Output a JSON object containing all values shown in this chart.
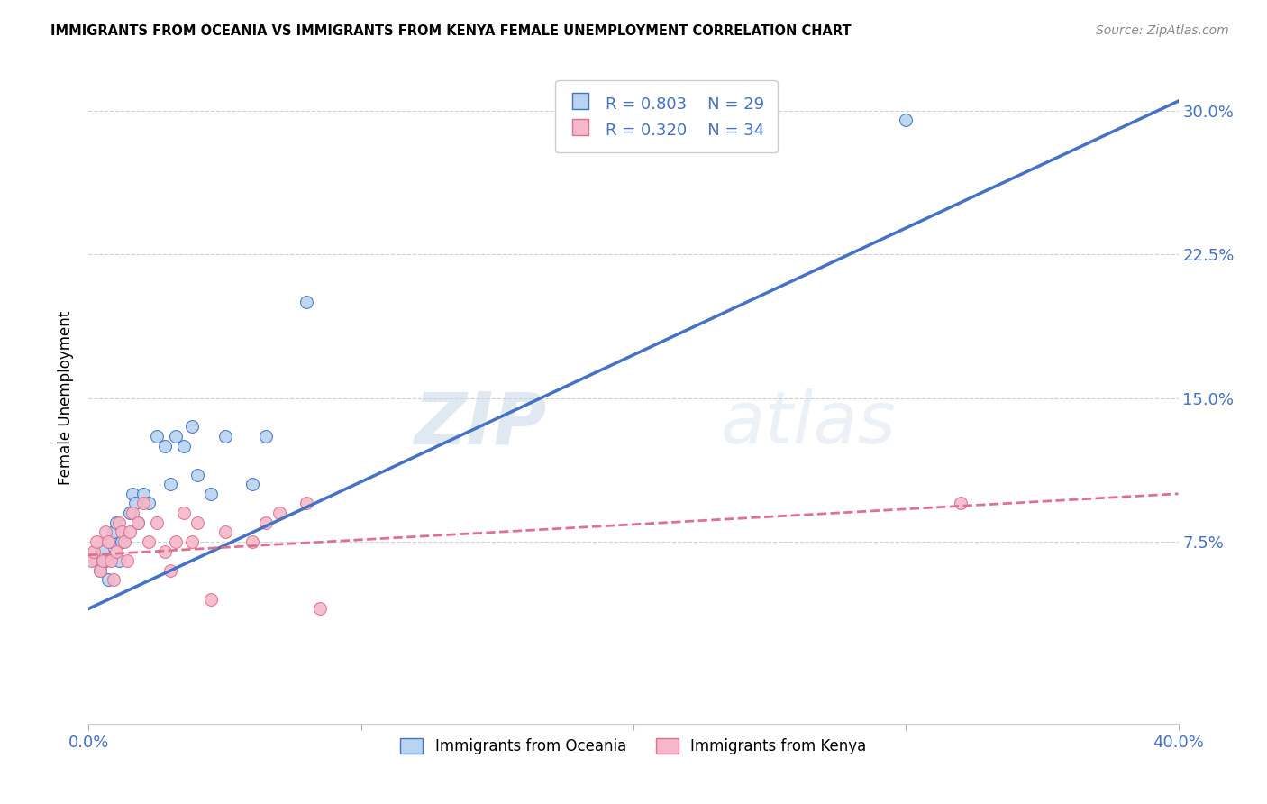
{
  "title": "IMMIGRANTS FROM OCEANIA VS IMMIGRANTS FROM KENYA FEMALE UNEMPLOYMENT CORRELATION CHART",
  "source": "Source: ZipAtlas.com",
  "ylabel": "Female Unemployment",
  "x_min": 0.0,
  "x_max": 0.4,
  "y_min": -0.02,
  "y_max": 0.32,
  "x_ticks": [
    0.0,
    0.1,
    0.2,
    0.3,
    0.4
  ],
  "x_tick_labels": [
    "0.0%",
    "",
    "",
    "",
    "40.0%"
  ],
  "y_ticks": [
    0.075,
    0.15,
    0.225,
    0.3
  ],
  "y_tick_labels": [
    "7.5%",
    "15.0%",
    "22.5%",
    "30.0%"
  ],
  "legend_r1": "R = 0.803",
  "legend_n1": "N = 29",
  "legend_r2": "R = 0.320",
  "legend_n2": "N = 34",
  "color_oceania": "#b8d4ee",
  "color_kenya": "#f5b8c8",
  "line_color_oceania": "#4472c4",
  "line_color_kenya": "#e07090",
  "legend_label_oceania": "Immigrants from Oceania",
  "legend_label_kenya": "Immigrants from Kenya",
  "oceania_x": [
    0.003,
    0.004,
    0.005,
    0.006,
    0.007,
    0.008,
    0.009,
    0.01,
    0.011,
    0.012,
    0.015,
    0.016,
    0.017,
    0.018,
    0.02,
    0.022,
    0.025,
    0.028,
    0.03,
    0.032,
    0.035,
    0.038,
    0.04,
    0.045,
    0.05,
    0.06,
    0.065,
    0.08,
    0.3
  ],
  "oceania_y": [
    0.065,
    0.06,
    0.07,
    0.065,
    0.055,
    0.075,
    0.08,
    0.085,
    0.065,
    0.075,
    0.09,
    0.1,
    0.095,
    0.085,
    0.1,
    0.095,
    0.13,
    0.125,
    0.105,
    0.13,
    0.125,
    0.135,
    0.11,
    0.1,
    0.13,
    0.105,
    0.13,
    0.2,
    0.295
  ],
  "kenya_x": [
    0.001,
    0.002,
    0.003,
    0.004,
    0.005,
    0.006,
    0.007,
    0.008,
    0.009,
    0.01,
    0.011,
    0.012,
    0.013,
    0.014,
    0.015,
    0.016,
    0.018,
    0.02,
    0.022,
    0.025,
    0.028,
    0.03,
    0.032,
    0.035,
    0.038,
    0.04,
    0.045,
    0.05,
    0.06,
    0.065,
    0.07,
    0.08,
    0.085,
    0.32
  ],
  "kenya_y": [
    0.065,
    0.07,
    0.075,
    0.06,
    0.065,
    0.08,
    0.075,
    0.065,
    0.055,
    0.07,
    0.085,
    0.08,
    0.075,
    0.065,
    0.08,
    0.09,
    0.085,
    0.095,
    0.075,
    0.085,
    0.07,
    0.06,
    0.075,
    0.09,
    0.075,
    0.085,
    0.045,
    0.08,
    0.075,
    0.085,
    0.09,
    0.095,
    0.04,
    0.095
  ],
  "oceania_trendline_x": [
    0.0,
    0.4
  ],
  "oceania_trendline_y": [
    0.04,
    0.305
  ],
  "kenya_trendline_x": [
    0.0,
    0.4
  ],
  "kenya_trendline_y": [
    0.068,
    0.1
  ],
  "watermark_zip": "ZIP",
  "watermark_atlas": "atlas",
  "grid_color": "#d0d0d0",
  "background_color": "#ffffff",
  "marker_size": 100
}
